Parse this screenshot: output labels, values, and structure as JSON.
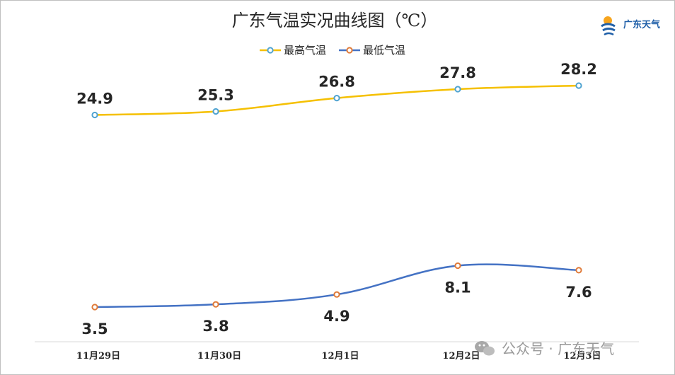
{
  "chart_data": {
    "type": "line",
    "title": "广东气温实况曲线图（℃）",
    "categories": [
      "11月29日",
      "11月30日",
      "12月1日",
      "12月2日",
      "12月3日"
    ],
    "series": [
      {
        "name": "最高气温",
        "values": [
          24.9,
          25.3,
          26.8,
          27.8,
          28.2
        ],
        "color": "#f5c000",
        "marker_color": "#4fa3d1",
        "label_position": "above"
      },
      {
        "name": "最低气温",
        "values": [
          3.5,
          3.8,
          4.9,
          8.1,
          7.6
        ],
        "color": "#4472c4",
        "marker_color": "#e07b39",
        "label_position": "below"
      }
    ],
    "legend_position": "top-center",
    "grid": false,
    "smooth": true
  },
  "brand": {
    "name": "广东天气",
    "icon": "sun-swirl-logo"
  },
  "watermark": {
    "text": "公众号 · 广东天气",
    "icon": "wechat-icon"
  }
}
